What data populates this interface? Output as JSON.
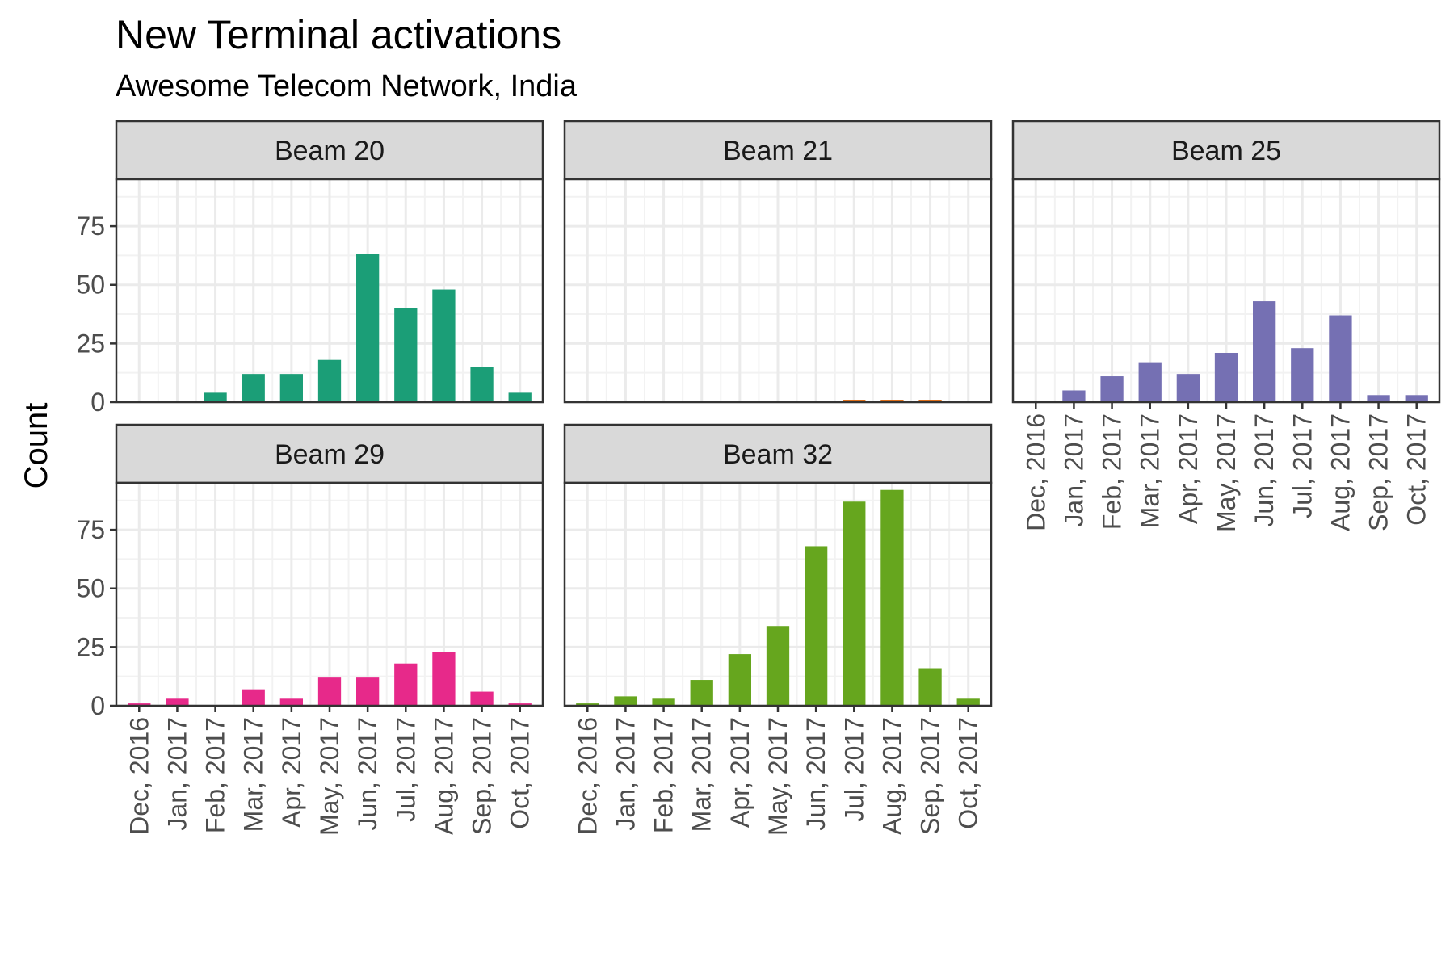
{
  "chart_data": {
    "type": "bar",
    "title": "New Terminal activations",
    "subtitle": "Awesome Telecom Network, India",
    "xlabel": "",
    "ylabel": "Count",
    "ylim": [
      0,
      95
    ],
    "yticks": [
      0,
      25,
      50,
      75
    ],
    "grid": true,
    "categories": [
      "Dec, 2016",
      "Jan, 2017",
      "Feb, 2017",
      "Mar, 2017",
      "Apr, 2017",
      "May, 2017",
      "Jun, 2017",
      "Jul, 2017",
      "Aug, 2017",
      "Sep, 2017",
      "Oct, 2017"
    ],
    "facets": [
      {
        "name": "Beam 20",
        "color": "#1b9e77",
        "values": [
          0,
          0,
          4,
          12,
          12,
          18,
          63,
          40,
          48,
          15,
          4
        ]
      },
      {
        "name": "Beam 21",
        "color": "#d95f02",
        "values": [
          0,
          0,
          0,
          0,
          0,
          0,
          0,
          1,
          1,
          1,
          0
        ]
      },
      {
        "name": "Beam 25",
        "color": "#7570b3",
        "values": [
          0,
          5,
          11,
          17,
          12,
          21,
          43,
          23,
          37,
          3,
          3
        ]
      },
      {
        "name": "Beam 29",
        "color": "#e7298a",
        "values": [
          1,
          3,
          0,
          7,
          3,
          12,
          12,
          18,
          23,
          6,
          1
        ]
      },
      {
        "name": "Beam 32",
        "color": "#66a61e",
        "values": [
          1,
          4,
          3,
          11,
          22,
          34,
          68,
          87,
          92,
          16,
          3
        ]
      }
    ]
  }
}
